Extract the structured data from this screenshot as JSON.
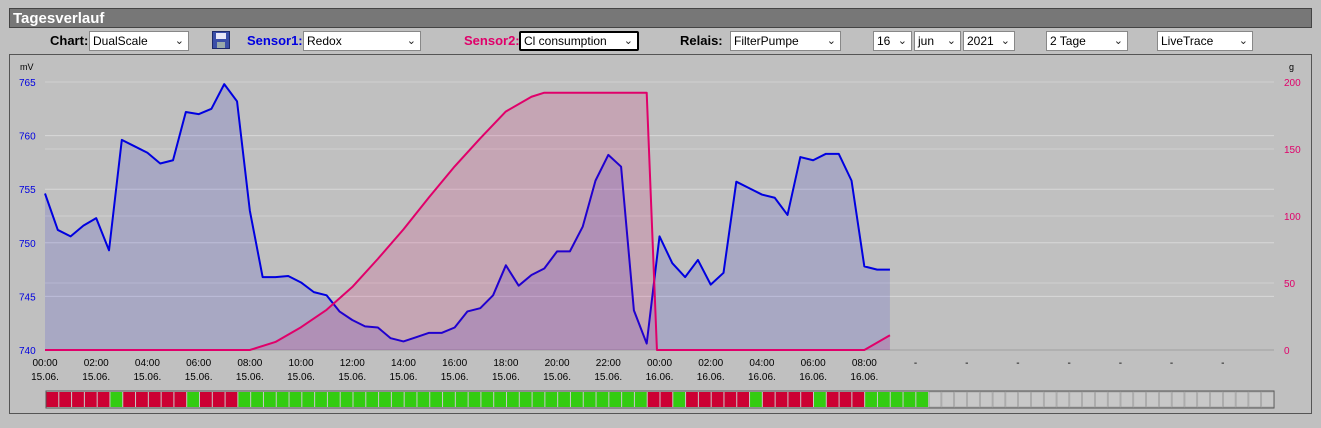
{
  "header": {
    "title": "Tagesverlauf"
  },
  "controls": {
    "chart_label": "Chart:",
    "chart_value": "DualScale",
    "save_icon": "floppy-disk-icon",
    "sensor1_label": "Sensor1:",
    "sensor1_value": "Redox",
    "sensor2_label": "Sensor2:",
    "sensor2_value": "Cl consumption",
    "relais_label": "Relais:",
    "relais_value": "FilterPumpe",
    "day_value": "16",
    "month_value": "jun",
    "year_value": "2021",
    "range_value": "2 Tage",
    "mode_value": "LiveTrace"
  },
  "colors": {
    "sensor1": "#0000e0",
    "sensor2": "#e0006a",
    "relay_on": "#33cc11",
    "relay_off": "#cc0033",
    "relay_none": "#c8c8c8"
  },
  "chart_data": {
    "type": "line",
    "left_axis": {
      "unit": "mV",
      "ylim": [
        740,
        766
      ],
      "ticks": [
        "740",
        "745",
        "750",
        "755",
        "760",
        "765"
      ]
    },
    "right_axis": {
      "unit": "g",
      "ylim": [
        0,
        200
      ],
      "ticks": [
        "0",
        "50",
        "100",
        "150",
        "200"
      ]
    },
    "x_range_hours": [
      0,
      48
    ],
    "x_ticks": [
      {
        "time": "00:00",
        "date": "15.06."
      },
      {
        "time": "02:00",
        "date": "15.06."
      },
      {
        "time": "04:00",
        "date": "15.06."
      },
      {
        "time": "06:00",
        "date": "15.06."
      },
      {
        "time": "08:00",
        "date": "15.06."
      },
      {
        "time": "10:00",
        "date": "15.06."
      },
      {
        "time": "12:00",
        "date": "15.06."
      },
      {
        "time": "14:00",
        "date": "15.06."
      },
      {
        "time": "16:00",
        "date": "15.06."
      },
      {
        "time": "18:00",
        "date": "15.06."
      },
      {
        "time": "20:00",
        "date": "15.06."
      },
      {
        "time": "22:00",
        "date": "15.06."
      },
      {
        "time": "00:00",
        "date": "16.06."
      },
      {
        "time": "02:00",
        "date": "16.06."
      },
      {
        "time": "04:00",
        "date": "16.06."
      },
      {
        "time": "06:00",
        "date": "16.06."
      },
      {
        "time": "08:00",
        "date": "16.06."
      },
      {
        "time": "-",
        "date": ""
      },
      {
        "time": "-",
        "date": ""
      },
      {
        "time": "-",
        "date": ""
      },
      {
        "time": "-",
        "date": ""
      },
      {
        "time": "-",
        "date": ""
      },
      {
        "time": "-",
        "date": ""
      },
      {
        "time": "-",
        "date": ""
      }
    ],
    "series": [
      {
        "name": "Redox",
        "axis": "left",
        "points": [
          [
            0,
            754.6
          ],
          [
            0.5,
            751.2
          ],
          [
            1,
            750.6
          ],
          [
            1.5,
            751.6
          ],
          [
            2,
            752.3
          ],
          [
            2.5,
            749.3
          ],
          [
            3,
            759.6
          ],
          [
            3.5,
            759.0
          ],
          [
            4,
            758.4
          ],
          [
            4.5,
            757.4
          ],
          [
            5,
            757.7
          ],
          [
            5.5,
            762.2
          ],
          [
            6,
            762.0
          ],
          [
            6.5,
            762.5
          ],
          [
            7,
            764.8
          ],
          [
            7.5,
            763.2
          ],
          [
            8,
            753.0
          ],
          [
            8.5,
            746.8
          ],
          [
            9,
            746.8
          ],
          [
            9.5,
            746.9
          ],
          [
            10,
            746.3
          ],
          [
            10.5,
            745.4
          ],
          [
            11,
            745.1
          ],
          [
            11.5,
            743.6
          ],
          [
            12,
            742.8
          ],
          [
            12.5,
            742.2
          ],
          [
            13,
            742.1
          ],
          [
            13.5,
            741.1
          ],
          [
            14,
            740.8
          ],
          [
            14.5,
            741.2
          ],
          [
            15,
            741.6
          ],
          [
            15.5,
            741.6
          ],
          [
            16,
            742.1
          ],
          [
            16.5,
            743.6
          ],
          [
            17,
            743.9
          ],
          [
            17.5,
            745.1
          ],
          [
            18,
            747.9
          ],
          [
            18.5,
            746.0
          ],
          [
            19,
            747.0
          ],
          [
            19.5,
            747.6
          ],
          [
            20,
            749.2
          ],
          [
            20.5,
            749.2
          ],
          [
            21,
            751.5
          ],
          [
            21.5,
            755.8
          ],
          [
            22,
            758.2
          ],
          [
            22.5,
            757.1
          ],
          [
            23,
            743.7
          ],
          [
            23.5,
            740.6
          ],
          [
            24,
            750.6
          ],
          [
            24.5,
            748.1
          ],
          [
            25,
            746.8
          ],
          [
            25.5,
            748.4
          ],
          [
            26,
            746.1
          ],
          [
            26.5,
            747.2
          ],
          [
            27,
            755.7
          ],
          [
            27.5,
            755.1
          ],
          [
            28,
            754.5
          ],
          [
            28.5,
            754.2
          ],
          [
            29,
            752.6
          ],
          [
            29.5,
            758.0
          ],
          [
            30,
            757.7
          ],
          [
            30.5,
            758.3
          ],
          [
            31,
            758.3
          ],
          [
            31.5,
            755.8
          ],
          [
            32,
            747.8
          ],
          [
            32.5,
            747.5
          ],
          [
            33,
            747.5
          ]
        ]
      },
      {
        "name": "Cl consumption",
        "axis": "right",
        "points": [
          [
            0,
            0
          ],
          [
            8,
            0
          ],
          [
            9,
            6
          ],
          [
            10,
            17
          ],
          [
            11,
            30
          ],
          [
            12,
            47
          ],
          [
            13,
            68
          ],
          [
            14,
            90
          ],
          [
            15,
            114
          ],
          [
            16,
            137
          ],
          [
            17,
            158
          ],
          [
            18,
            178
          ],
          [
            19,
            189
          ],
          [
            19.5,
            192
          ],
          [
            23.5,
            192
          ],
          [
            23.9,
            0
          ],
          [
            32,
            0
          ],
          [
            33,
            11
          ]
        ]
      }
    ],
    "relay_bar": {
      "cells": [
        "off",
        "off",
        "off",
        "off",
        "off",
        "on",
        "off",
        "off",
        "off",
        "off",
        "off",
        "on",
        "off",
        "off",
        "off",
        "on",
        "on",
        "on",
        "on",
        "on",
        "on",
        "on",
        "on",
        "on",
        "on",
        "on",
        "on",
        "on",
        "on",
        "on",
        "on",
        "on",
        "on",
        "on",
        "on",
        "on",
        "on",
        "on",
        "on",
        "on",
        "on",
        "on",
        "on",
        "on",
        "on",
        "on",
        "on",
        "off",
        "off",
        "on",
        "off",
        "off",
        "off",
        "off",
        "off",
        "on",
        "off",
        "off",
        "off",
        "off",
        "on",
        "off",
        "off",
        "off",
        "on",
        "on",
        "on",
        "on",
        "on",
        "none",
        "none",
        "none",
        "none",
        "none",
        "none",
        "none",
        "none",
        "none",
        "none",
        "none",
        "none",
        "none",
        "none",
        "none",
        "none",
        "none",
        "none",
        "none",
        "none",
        "none",
        "none",
        "none",
        "none",
        "none",
        "none",
        "none"
      ]
    }
  }
}
